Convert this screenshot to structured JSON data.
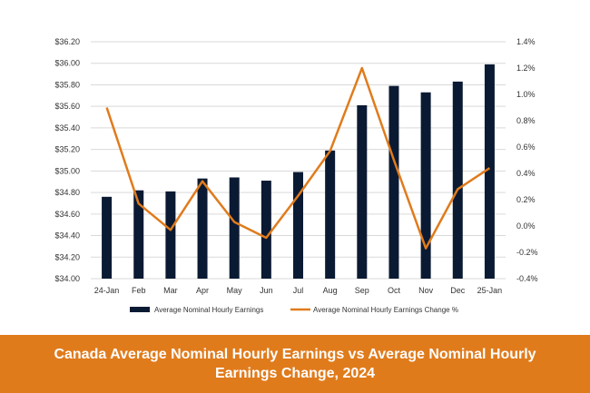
{
  "colors": {
    "bar": "#0b1a33",
    "line": "#e07b1c",
    "grid": "#d9d9d9",
    "banner": "#e07b1c"
  },
  "banner": {
    "title": "Canada Average Nominal Hourly Earnings vs Average Nominal Hourly Earnings Change, 2024"
  },
  "chart_data": {
    "type": "bar",
    "title": "",
    "categories": [
      "24-Jan",
      "Feb",
      "Mar",
      "Apr",
      "May",
      "Jun",
      "Jul",
      "Aug",
      "Sep",
      "Oct",
      "Nov",
      "Dec",
      "25-Jan"
    ],
    "series": [
      {
        "name": "Average Nominal Hourly Earnings",
        "type": "bar",
        "axis": "left",
        "values": [
          34.76,
          34.82,
          34.81,
          34.93,
          34.94,
          34.91,
          34.99,
          35.19,
          35.61,
          35.79,
          35.73,
          35.83,
          35.99
        ]
      },
      {
        "name": "Average Nominal Hourly Earnings Change %",
        "type": "line",
        "axis": "right",
        "values": [
          0.9,
          0.17,
          -0.03,
          0.34,
          0.03,
          -0.09,
          0.23,
          0.57,
          1.2,
          0.5,
          -0.17,
          0.28,
          0.44
        ]
      }
    ],
    "y_left": {
      "min": 34.0,
      "max": 36.2,
      "ticks": [
        36.2,
        36.0,
        35.8,
        35.6,
        35.4,
        35.2,
        35.0,
        34.8,
        34.6,
        34.4,
        34.2,
        34.0
      ],
      "tick_labels": [
        "$36.20",
        "$36.00",
        "$35.80",
        "$35.60",
        "$35.40",
        "$35.20",
        "$35.00",
        "$34.80",
        "$34.60",
        "$34.40",
        "$34.20",
        "$34.00"
      ]
    },
    "y_right": {
      "min": -0.4,
      "max": 1.4,
      "ticks": [
        1.4,
        1.2,
        1.0,
        0.8,
        0.6,
        0.4,
        0.2,
        0.0,
        -0.2,
        -0.4
      ],
      "tick_labels": [
        "1.4%",
        "1.2%",
        "1.0%",
        "0.8%",
        "0.6%",
        "0.4%",
        "0.2%",
        "0.0%",
        "-0.2%",
        "-0.4%"
      ]
    },
    "grid": true,
    "legend_position": "bottom"
  }
}
